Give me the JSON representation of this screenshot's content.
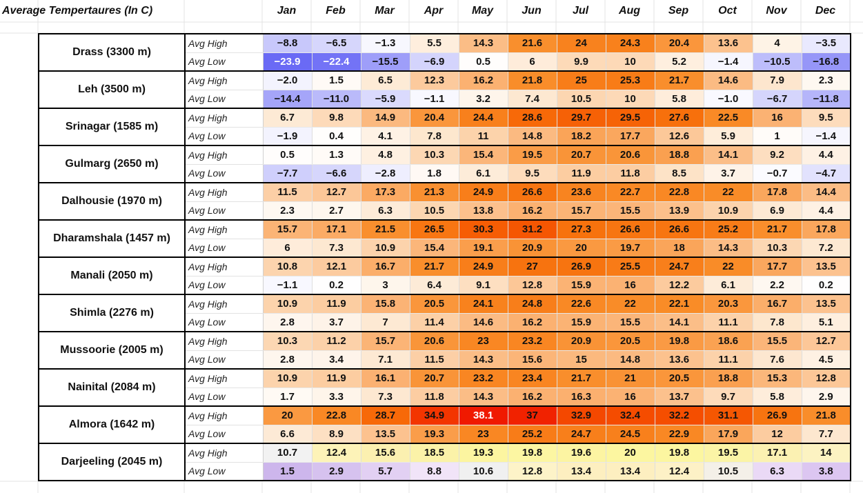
{
  "title": "Average Tempertaures (In C)",
  "months": [
    "Jan",
    "Feb",
    "Mar",
    "Apr",
    "May",
    "Jun",
    "Jul",
    "Aug",
    "Sep",
    "Oct",
    "Nov",
    "Dec"
  ],
  "row_labels": {
    "high": "Avg High",
    "low": "Avg Low"
  },
  "cities": [
    {
      "name": "Drass (3300 m)",
      "high": [
        "−8.8",
        "−6.5",
        "−1.3",
        "5.5",
        "14.3",
        "21.6",
        "24",
        "24.3",
        "20.4",
        "13.6",
        "4",
        "−3.5"
      ],
      "low": [
        "−23.9",
        "−22.4",
        "−15.5",
        "−6.9",
        "0.5",
        "6",
        "9.9",
        "10",
        "5.2",
        "−1.4",
        "−10.5",
        "−16.8"
      ]
    },
    {
      "name": "Leh (3500 m)",
      "high": [
        "−2.0",
        "1.5",
        "6.5",
        "12.3",
        "16.2",
        "21.8",
        "25",
        "25.3",
        "21.7",
        "14.6",
        "7.9",
        "2.3"
      ],
      "low": [
        "−14.4",
        "−11.0",
        "−5.9",
        "−1.1",
        "3.2",
        "7.4",
        "10.5",
        "10",
        "5.8",
        "−1.0",
        "−6.7",
        "−11.8"
      ]
    },
    {
      "name": "Srinagar (1585 m)",
      "high": [
        "6.7",
        "9.8",
        "14.9",
        "20.4",
        "24.4",
        "28.6",
        "29.7",
        "29.5",
        "27.6",
        "22.5",
        "16",
        "9.5"
      ],
      "low": [
        "−1.9",
        "0.4",
        "4.1",
        "7.8",
        "11",
        "14.8",
        "18.2",
        "17.7",
        "12.6",
        "5.9",
        "1",
        "−1.4"
      ]
    },
    {
      "name": "Gulmarg (2650 m)",
      "high": [
        "0.5",
        "1.3",
        "4.8",
        "10.3",
        "15.4",
        "19.5",
        "20.7",
        "20.6",
        "18.8",
        "14.1",
        "9.2",
        "4.4"
      ],
      "low": [
        "−7.7",
        "−6.6",
        "−2.8",
        "1.8",
        "6.1",
        "9.5",
        "11.9",
        "11.8",
        "8.5",
        "3.7",
        "−0.7",
        "−4.7"
      ]
    },
    {
      "name": "Dalhousie (1970 m)",
      "high": [
        "11.5",
        "12.7",
        "17.3",
        "21.3",
        "24.9",
        "26.6",
        "23.6",
        "22.7",
        "22.8",
        "22",
        "17.8",
        "14.4"
      ],
      "low": [
        "2.3",
        "2.7",
        "6.3",
        "10.5",
        "13.8",
        "16.2",
        "15.7",
        "15.5",
        "13.9",
        "10.9",
        "6.9",
        "4.4"
      ]
    },
    {
      "name": "Dharamshala (1457 m)",
      "high": [
        "15.7",
        "17.1",
        "21.5",
        "26.5",
        "30.3",
        "31.2",
        "27.3",
        "26.6",
        "26.6",
        "25.2",
        "21.7",
        "17.8"
      ],
      "low": [
        "6",
        "7.3",
        "10.9",
        "15.4",
        "19.1",
        "20.9",
        "20",
        "19.7",
        "18",
        "14.3",
        "10.3",
        "7.2"
      ]
    },
    {
      "name": "Manali (2050 m)",
      "high": [
        "10.8",
        "12.1",
        "16.7",
        "21.7",
        "24.9",
        "27",
        "26.9",
        "25.5",
        "24.7",
        "22",
        "17.7",
        "13.5"
      ],
      "low": [
        "−1.1",
        "0.2",
        "3",
        "6.4",
        "9.1",
        "12.8",
        "15.9",
        "16",
        "12.2",
        "6.1",
        "2.2",
        "0.2"
      ]
    },
    {
      "name": "Shimla (2276 m)",
      "high": [
        "10.9",
        "11.9",
        "15.8",
        "20.5",
        "24.1",
        "24.8",
        "22.6",
        "22",
        "22.1",
        "20.3",
        "16.7",
        "13.5"
      ],
      "low": [
        "2.8",
        "3.7",
        "7",
        "11.4",
        "14.6",
        "16.2",
        "15.9",
        "15.5",
        "14.1",
        "11.1",
        "7.8",
        "5.1"
      ]
    },
    {
      "name": "Mussoorie (2005 m)",
      "high": [
        "10.3",
        "11.2",
        "15.7",
        "20.6",
        "23",
        "23.2",
        "20.9",
        "20.5",
        "19.8",
        "18.6",
        "15.5",
        "12.7"
      ],
      "low": [
        "2.8",
        "3.4",
        "7.1",
        "11.5",
        "14.3",
        "15.6",
        "15",
        "14.8",
        "13.6",
        "11.1",
        "7.6",
        "4.5"
      ]
    },
    {
      "name": "Nainital (2084 m)",
      "high": [
        "10.9",
        "11.9",
        "16.1",
        "20.7",
        "23.2",
        "23.4",
        "21.7",
        "21",
        "20.5",
        "18.8",
        "15.3",
        "12.8"
      ],
      "low": [
        "1.7",
        "3.3",
        "7.3",
        "11.8",
        "14.3",
        "16.2",
        "16.3",
        "16",
        "13.7",
        "9.7",
        "5.8",
        "2.9"
      ]
    },
    {
      "name": "Almora (1642 m)",
      "high": [
        "20",
        "22.8",
        "28.7",
        "34.9",
        "38.1",
        "37",
        "32.9",
        "32.4",
        "32.2",
        "31.1",
        "26.9",
        "21.8"
      ],
      "low": [
        "6.6",
        "8.9",
        "13.5",
        "19.3",
        "23",
        "25.2",
        "24.7",
        "24.5",
        "22.9",
        "17.9",
        "12",
        "7.7"
      ]
    },
    {
      "name": "Darjeeling (2045 m)",
      "high": [
        "10.7",
        "12.4",
        "15.6",
        "18.5",
        "19.3",
        "19.8",
        "19.6",
        "20",
        "19.8",
        "19.5",
        "17.1",
        "14"
      ],
      "low": [
        "1.5",
        "2.9",
        "5.7",
        "8.8",
        "10.6",
        "12.8",
        "13.4",
        "13.4",
        "12.4",
        "10.5",
        "6.3",
        "3.8"
      ]
    }
  ],
  "darjeeling_high_colors": [
    "#f2f2f2",
    "#fdf3b8",
    "#fbf0b0",
    "#fbf2a8",
    "#fcf5a0",
    "#fcf6a2",
    "#fcf4a2",
    "#fcf6a0",
    "#fcf6a0",
    "#fbf4a6",
    "#fbf1b2",
    "#fcf3c2"
  ],
  "darjeeling_low_colors": [
    "#cdb6ec",
    "#d6c2ef",
    "#e2d0f3",
    "#f1e4f8",
    "#f0f0f0",
    "#fdf3c8",
    "#fdefc0",
    "#fdefc0",
    "#fdf1c6",
    "#f4f0e8",
    "#ead9f6",
    "#dcc6f1"
  ]
}
